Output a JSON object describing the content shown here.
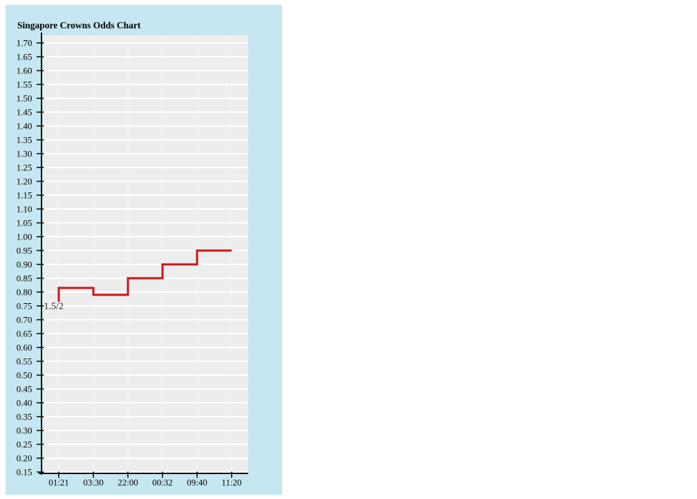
{
  "panel": {
    "title": "Singapore Crowns Odds Chart",
    "panel_bg": "#c6e7f1"
  },
  "chart_data": {
    "type": "line",
    "subtype": "step",
    "title": "Singapore Crowns Odds Chart",
    "x_categories": [
      "01:21",
      "03:30",
      "22:00",
      "00:32",
      "09:40",
      "11:20"
    ],
    "values": [
      0.765,
      0.815,
      0.79,
      0.85,
      0.9,
      0.95
    ],
    "annotation": {
      "text": "1.5/2",
      "at_value": 0.75
    },
    "xlabel": "",
    "ylabel": "",
    "ylim": [
      0.15,
      1.7
    ],
    "y_tick_step": 0.05,
    "y_tick_labels": [
      "1.70",
      "1.65",
      "1.60",
      "1.55",
      "1.50",
      "1.45",
      "1.40",
      "1.35",
      "1.30",
      "1.25",
      "1.20",
      "1.15",
      "1.10",
      "1.05",
      "1.00",
      "0.95",
      "0.90",
      "0.85",
      "0.80",
      "0.75",
      "0.70",
      "0.65",
      "0.60",
      "0.55",
      "0.50",
      "0.45",
      "0.40",
      "0.35",
      "0.30",
      "0.25",
      "0.20",
      "0.15"
    ],
    "grid": true,
    "legend": "none",
    "line_color": "#cc1414",
    "plot_bg": "#ededed",
    "gridline_color": "#ffffff",
    "axis_color": "#000000",
    "label_color": "#000000",
    "annotation_color": "#222222"
  }
}
